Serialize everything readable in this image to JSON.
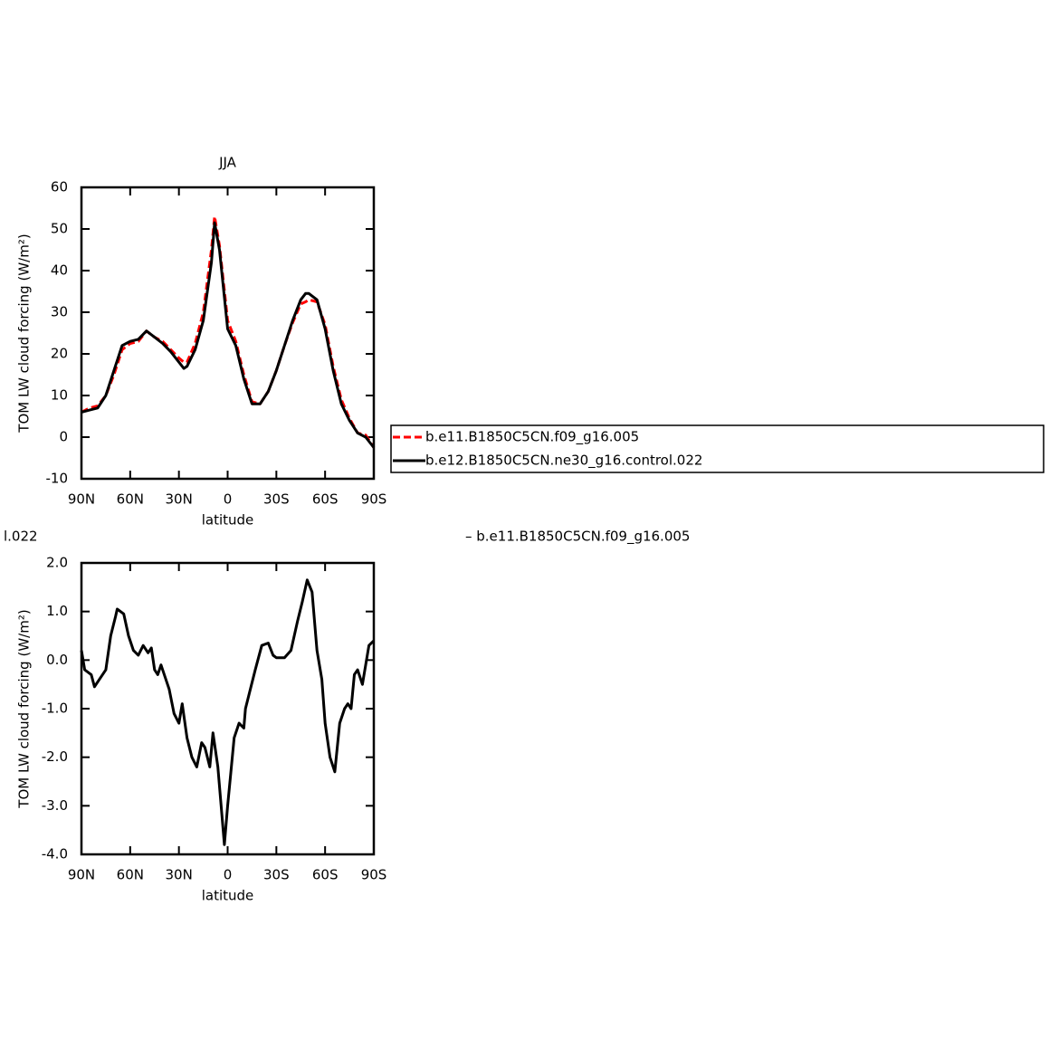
{
  "chart_data": [
    {
      "type": "line",
      "title": "JJA",
      "xlabel": "latitude",
      "ylabel": "TOM LW cloud forcing (W/m²)",
      "x": [
        90,
        85,
        80,
        75,
        70,
        65,
        60,
        55,
        50,
        45,
        40,
        35,
        30,
        27,
        25,
        20,
        15,
        10,
        8,
        5,
        0,
        -5,
        -10,
        -15,
        -20,
        -25,
        -30,
        -35,
        -40,
        -45,
        -48,
        -50,
        -55,
        -60,
        -65,
        -70,
        -75,
        -80,
        -85,
        -90
      ],
      "series": [
        {
          "name": "b.e11.B1850C5CN.f09_g16.005",
          "color": "#ff0000",
          "linestyle": "dashed",
          "values": [
            6,
            7,
            7.5,
            10,
            15,
            21,
            22.5,
            23,
            25.5,
            24,
            23,
            21,
            19,
            18,
            18,
            22.5,
            30,
            45,
            53,
            46,
            28,
            23,
            15,
            8.5,
            8,
            11,
            16,
            22,
            27.5,
            32,
            32.5,
            33,
            32.5,
            27,
            17,
            9,
            4.5,
            1,
            0.5,
            -2.5
          ]
        },
        {
          "name": "b.e12.B1850C5CN.ne30_g16.control.022",
          "color": "#000000",
          "linestyle": "solid",
          "values": [
            6,
            6.5,
            7,
            10,
            16,
            22,
            23,
            23.5,
            25.5,
            24,
            22.5,
            20.5,
            18,
            16.5,
            17,
            21,
            28,
            42,
            51.5,
            45,
            26,
            22,
            14,
            8,
            8,
            11,
            16,
            22,
            28,
            33,
            34.5,
            34.5,
            33,
            26,
            16,
            8,
            4,
            1,
            0,
            -2.5
          ]
        }
      ],
      "xlim": [
        90,
        -90
      ],
      "xticks": [
        {
          "value": 90,
          "label": "90N"
        },
        {
          "value": 60,
          "label": "60N"
        },
        {
          "value": 30,
          "label": "30N"
        },
        0,
        {
          "value": -30,
          "label": "30S"
        },
        {
          "value": -60,
          "label": "60S"
        },
        {
          "value": -90,
          "label": "90S"
        }
      ],
      "ylim": [
        -10,
        60
      ],
      "yticks": [
        -10,
        0,
        10,
        20,
        30,
        40,
        50,
        60
      ],
      "legend": "right"
    },
    {
      "type": "line",
      "title_parts": [
        "l.022",
        "– b.e11.B1850C5CN.f09_g16.005"
      ],
      "xlabel": "latitude",
      "ylabel": "TOM LW cloud forcing (W/m²)",
      "x": [
        90,
        88,
        84,
        82,
        79,
        75,
        72,
        69,
        68,
        64,
        61,
        58,
        55,
        52,
        49,
        47,
        45,
        43,
        41,
        38,
        36,
        33,
        30,
        28,
        25,
        22,
        19,
        16,
        14,
        11,
        9,
        6,
        4,
        2,
        0,
        -2,
        -4,
        -7,
        -10,
        -11,
        -14,
        -17,
        -21,
        -25,
        -28,
        -30,
        -35,
        -39,
        -43,
        -46,
        -49,
        -52,
        -55,
        -58,
        -60,
        -63,
        -66,
        -69,
        -72,
        -74,
        -76,
        -78,
        -80,
        -83,
        -85,
        -87,
        -90
      ],
      "series": [
        {
          "color": "#000000",
          "linestyle": "solid",
          "values": [
            0.2,
            -0.2,
            -0.3,
            -0.55,
            -0.4,
            -0.2,
            0.5,
            0.9,
            1.05,
            0.95,
            0.5,
            0.2,
            0.1,
            0.3,
            0.15,
            0.25,
            -0.2,
            -0.3,
            -0.1,
            -0.4,
            -0.6,
            -1.1,
            -1.3,
            -0.9,
            -1.6,
            -2.0,
            -2.2,
            -1.7,
            -1.8,
            -2.2,
            -1.5,
            -2.2,
            -3.0,
            -3.8,
            -3.0,
            -2.3,
            -1.6,
            -1.3,
            -1.4,
            -1.0,
            -0.6,
            -0.2,
            0.3,
            0.35,
            0.1,
            0.05,
            0.05,
            0.2,
            0.8,
            1.2,
            1.65,
            1.4,
            0.2,
            -0.4,
            -1.3,
            -2.0,
            -2.3,
            -1.3,
            -1.0,
            -0.9,
            -1.0,
            -0.3,
            -0.2,
            -0.5,
            -0.1,
            0.3,
            0.4
          ]
        }
      ],
      "xlim": [
        90,
        -90
      ],
      "xticks": [
        {
          "value": 90,
          "label": "90N"
        },
        {
          "value": 60,
          "label": "60N"
        },
        {
          "value": 30,
          "label": "30N"
        },
        0,
        {
          "value": -30,
          "label": "30S"
        },
        {
          "value": -60,
          "label": "60S"
        },
        {
          "value": -90,
          "label": "90S"
        }
      ],
      "ylim": [
        -4,
        2
      ],
      "yticks": [
        {
          "value": -4,
          "label": "-4.0"
        },
        {
          "value": -3,
          "label": "-3.0"
        },
        {
          "value": -2,
          "label": "-2.0"
        },
        {
          "value": -1,
          "label": "-1.0"
        },
        {
          "value": 0,
          "label": "0.0"
        },
        {
          "value": 1,
          "label": "1.0"
        },
        {
          "value": 2,
          "label": "2.0"
        }
      ]
    }
  ]
}
